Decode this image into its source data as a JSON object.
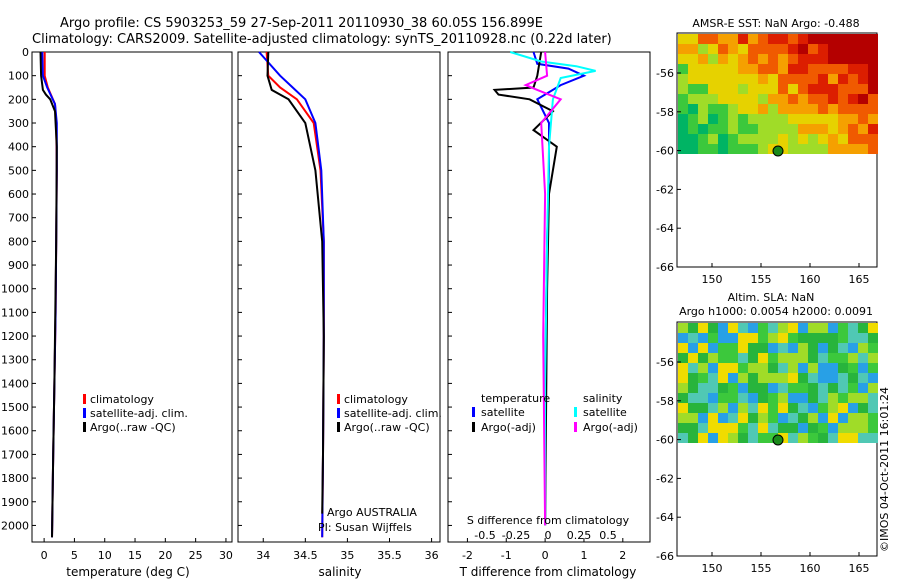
{
  "header": {
    "line1": "Argo profile: CS 5903253_59 27-Sep-2011 20110930_38 60.05S 156.899E",
    "line2": "Climatology: CARS2009. Satellite-adjusted climatology: synTS_20110928.nc (0.22d later)"
  },
  "colors": {
    "climatology": "#ff0000",
    "satellite": "#0000ff",
    "argo": "#000000",
    "sal_satellite": "#00ffff",
    "sal_argo": "#ff00ff"
  },
  "panels": {
    "temperature": {
      "xlabel": "temperature (deg C)",
      "xticks": [
        "0",
        "5",
        "10",
        "15",
        "20",
        "25",
        "30"
      ],
      "legend": [
        "climatology",
        "satellite-adj. clim.",
        "Argo(..raw -QC)"
      ]
    },
    "salinity": {
      "xlabel": "salinity",
      "xticks": [
        "34",
        "34.5",
        "35",
        "35.5",
        "36"
      ],
      "legend": [
        "climatology",
        "satellite-adj. clim.",
        "Argo(..raw -QC)"
      ],
      "note1": "Argo AUSTRALIA",
      "note2": "PI: Susan Wijffels"
    },
    "difference": {
      "xlabel": "T difference from climatology",
      "xticks": [
        "-2",
        "-1",
        "0",
        "1",
        "2"
      ],
      "top_label": "S difference from climatology",
      "top_ticks": [
        "-0.5",
        "-0.25",
        "0",
        "0.25",
        "0.5"
      ],
      "legend_t_title": "temperature",
      "legend_s_title": "salinity",
      "legend_t": [
        "satellite",
        "Argo(-adj)"
      ],
      "legend_s": [
        "satellite",
        "Argo(-adj)"
      ]
    },
    "depth_ticks": [
      "0",
      "100",
      "200",
      "300",
      "400",
      "500",
      "600",
      "700",
      "800",
      "900",
      "1000",
      "1100",
      "1200",
      "1300",
      "1400",
      "1500",
      "1600",
      "1700",
      "1800",
      "1900",
      "2000"
    ]
  },
  "maps": {
    "sst": {
      "title": "AMSR-E SST: NaN Argo: -0.488",
      "yticks": [
        "-56",
        "-58",
        "-60",
        "-62",
        "-64",
        "-66"
      ],
      "xticks": [
        "150",
        "155",
        "160",
        "165"
      ]
    },
    "sla": {
      "title1": "Altim. SLA: NaN",
      "title2": "Argo h1000: 0.0054 h2000: 0.0091",
      "yticks": [
        "-56",
        "-58",
        "-60",
        "-62",
        "-64",
        "-66"
      ],
      "xticks": [
        "150",
        "155",
        "160",
        "165"
      ]
    }
  },
  "side_stamp": "©IMOS 04-Oct-2011 16:01:24",
  "chart_data": [
    {
      "type": "line",
      "title": "",
      "xlabel": "temperature (deg C)",
      "ylabel": "",
      "xlim": [
        -2,
        31
      ],
      "ylim": [
        2070,
        0
      ],
      "series": [
        {
          "name": "climatology",
          "x": [
            0.1,
            0.1,
            0.6,
            1.8,
            2.0,
            2.1,
            2.0,
            1.9,
            1.7,
            1.5,
            1.3
          ],
          "y": [
            0,
            100,
            150,
            220,
            300,
            500,
            800,
            1100,
            1400,
            1700,
            2050
          ]
        },
        {
          "name": "satellite-adj. clim.",
          "x": [
            -0.3,
            -0.2,
            0.5,
            1.8,
            2.1,
            2.1,
            2.0,
            1.9,
            1.7,
            1.5,
            1.3
          ],
          "y": [
            0,
            100,
            150,
            220,
            300,
            500,
            800,
            1100,
            1400,
            1700,
            2050
          ]
        },
        {
          "name": "Argo(..raw -QC)",
          "x": [
            -0.6,
            -0.5,
            -0.2,
            0.3,
            1.0,
            1.8,
            2.1,
            2.0,
            1.7,
            1.5,
            1.3
          ],
          "y": [
            0,
            100,
            160,
            180,
            200,
            250,
            400,
            800,
            1400,
            1700,
            2050
          ]
        }
      ]
    },
    {
      "type": "line",
      "title": "",
      "xlabel": "salinity",
      "ylabel": "",
      "xlim": [
        33.7,
        36.1
      ],
      "ylim": [
        2070,
        0
      ],
      "series": [
        {
          "name": "climatology",
          "x": [
            34.04,
            34.06,
            34.2,
            34.4,
            34.6,
            34.68,
            34.72,
            34.72,
            34.71,
            34.7
          ],
          "y": [
            0,
            100,
            150,
            200,
            300,
            500,
            800,
            1200,
            1700,
            2050
          ]
        },
        {
          "name": "satellite-adj. clim.",
          "x": [
            33.95,
            34.2,
            34.35,
            34.5,
            34.62,
            34.69,
            34.72,
            34.72,
            34.71,
            34.7
          ],
          "y": [
            0,
            100,
            150,
            200,
            300,
            500,
            800,
            1200,
            1700,
            2050
          ]
        },
        {
          "name": "Argo(..raw -QC)",
          "x": [
            34.06,
            34.05,
            34.1,
            34.3,
            34.5,
            34.62,
            34.7,
            34.72,
            34.71,
            34.7
          ],
          "y": [
            0,
            100,
            160,
            200,
            300,
            500,
            800,
            1200,
            1700,
            1950
          ]
        }
      ]
    },
    {
      "type": "line",
      "title": "",
      "xlabel": "T difference from climatology",
      "ylabel": "",
      "xlim": [
        -2.5,
        2.7
      ],
      "ylim": [
        2070,
        0
      ],
      "series": [
        {
          "name": "temperature satellite",
          "x": [
            -0.3,
            -0.2,
            0.6,
            1.0,
            0.4,
            -0.2,
            0.1,
            0.1,
            0.05,
            0.0,
            0.0
          ],
          "y": [
            0,
            50,
            70,
            100,
            140,
            200,
            300,
            500,
            800,
            1400,
            2000
          ]
        },
        {
          "name": "temperature Argo(-adj)",
          "x": [
            -0.1,
            -0.2,
            -0.3,
            -1.3,
            -1.2,
            -0.4,
            0.2,
            -0.3,
            0.3,
            0.1,
            0.05,
            0.0
          ],
          "y": [
            0,
            100,
            150,
            160,
            180,
            200,
            250,
            330,
            400,
            600,
            1000,
            2000
          ]
        },
        {
          "name": "salinity satellite",
          "x": [
            -0.9,
            -0.1,
            0.8,
            1.3,
            0.4,
            0.2,
            0.1,
            0.05,
            0.0,
            0.0
          ],
          "y": [
            0,
            40,
            60,
            80,
            110,
            200,
            400,
            800,
            1400,
            2000
          ]
        },
        {
          "name": "salinity Argo(-adj)",
          "x": [
            0.0,
            0.05,
            -0.5,
            -0.2,
            0.4,
            -0.1,
            0.0,
            -0.05,
            0.0
          ],
          "y": [
            0,
            100,
            140,
            160,
            200,
            300,
            600,
            1200,
            2000
          ]
        }
      ]
    }
  ]
}
